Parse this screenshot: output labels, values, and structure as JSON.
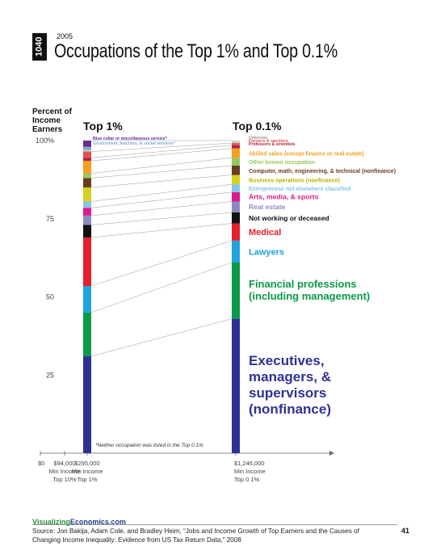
{
  "header": {
    "logo_text": "1040",
    "year": "2005",
    "title": "Occupations of the Top 1% and Top 0.1%"
  },
  "y_axis_label": "Percent of Income Earners",
  "note": "*Neither occupation was listed in the Top 0.1%",
  "footer": {
    "brand_part1": "Visualizing",
    "brand_part2": "Economics.com",
    "source": "Source: Jon Bakija, Adam Cole, and Bradley Heim, “Jobs and Income Growth of Top Earners and the Causes of Changing Income Inequality: Evidence from US Tax Return Data,” 2008",
    "page_number": "41"
  },
  "chart_data": {
    "type": "bar",
    "subtype": "stacked-100-percent",
    "ylim": [
      0,
      100
    ],
    "yticks": [
      "100%",
      "75",
      "50",
      "25"
    ],
    "ytick_values": [
      100,
      75,
      50,
      25
    ],
    "x_axis": {
      "ticks": [
        {
          "value": 0,
          "lines": [
            "$0"
          ]
        },
        {
          "value": 94000,
          "lines": [
            "$94,000",
            "Min Income",
            "Top 10%"
          ]
        },
        {
          "value": 295000,
          "lines": [
            "$295,000",
            "Min Income",
            "Top 1%"
          ]
        },
        {
          "value": 1246000,
          "lines": [
            "$1,246,000",
            "Min Income",
            "Top 0.1%"
          ]
        }
      ]
    },
    "columns": [
      {
        "name": "Top 1%",
        "min_income": 295000
      },
      {
        "name": "Top 0.1%",
        "min_income": 1246000
      }
    ],
    "series": [
      {
        "name": "Executives, managers, & supervisors (nonfinance)",
        "color": "#2e3192",
        "values": [
          31.0,
          43.0
        ]
      },
      {
        "name": "Financial professions (including management)",
        "color": "#0a9a48",
        "values": [
          14.0,
          18.0
        ]
      },
      {
        "name": "Lawyers",
        "color": "#1ea3dc",
        "values": [
          8.5,
          7.0
        ]
      },
      {
        "name": "Medical",
        "color": "#e4202a",
        "values": [
          15.5,
          5.5
        ]
      },
      {
        "name": "Not working or deceased",
        "color": "#111111",
        "values": [
          4.0,
          3.5
        ]
      },
      {
        "name": "Real estate",
        "color": "#8b8bc4",
        "values": [
          3.0,
          3.5
        ]
      },
      {
        "name": "Arts, media, & sports",
        "color": "#dd1a8c",
        "values": [
          2.5,
          3.0
        ]
      },
      {
        "name": "Entrepreneur not elsewhere classified",
        "color": "#86c4e8",
        "values": [
          2.0,
          2.5
        ]
      },
      {
        "name": "Business operations (nonfinance)",
        "color": "#d4d21f",
        "values": [
          4.5,
          3.0
        ]
      },
      {
        "name": "Computer, math, engineering, & technical (nonfinance)",
        "color": "#6a3b22",
        "values": [
          3.0,
          3.0
        ]
      },
      {
        "name": "Other known occupation",
        "color": "#98c960",
        "values": [
          1.5,
          2.5
        ]
      },
      {
        "name": "Skilled sales (except finance or real estate)",
        "color": "#f5a01f",
        "values": [
          4.0,
          3.0
        ]
      },
      {
        "name": "Professors & scientists",
        "color": "#b31f46",
        "values": [
          1.0,
          1.0
        ]
      },
      {
        "name": "Farmers & ranchers",
        "color": "#e3534e",
        "values": [
          2.0,
          0.7
        ]
      },
      {
        "name": "Unknown",
        "color": "#cccccc",
        "values": [
          0.5,
          0.8
        ]
      },
      {
        "name": "Government, teachers, & social services*",
        "color": "#7da7d9",
        "values": [
          1.0,
          0
        ]
      },
      {
        "name": "Blue collar or miscellaneous service*",
        "color": "#6d2c8f",
        "values": [
          2.0,
          0
        ]
      }
    ],
    "legend_labels": [
      {
        "text": "Blue collar or miscellaneous service*",
        "series": 16,
        "column": 0
      },
      {
        "text": "Government, teachers, & social services*",
        "series": 15,
        "column": 0
      },
      {
        "text": "Unknown",
        "series": 14,
        "column": 1
      },
      {
        "text": "Farmers & ranchers",
        "series": 13,
        "column": 1
      },
      {
        "text": "Professors & scientists",
        "series": 12,
        "column": 1
      },
      {
        "text": "Skilled sales (except finance or real estate)",
        "series": 11,
        "column": 1
      },
      {
        "text": "Other known occupation",
        "series": 10,
        "column": 1
      },
      {
        "text": "Computer, math, engineering, & technical (nonfinance)",
        "series": 9,
        "column": 1
      },
      {
        "text": "Business operations (nonfinance)",
        "series": 8,
        "column": 1
      },
      {
        "text": "Entrepreneur not elsewhere classified",
        "series": 7,
        "column": 1
      },
      {
        "text": "Arts, media, & sports",
        "series": 6,
        "column": 1
      },
      {
        "text": "Real estate",
        "series": 5,
        "column": 1
      },
      {
        "text": "Not working or deceased",
        "series": 4,
        "column": 1
      },
      {
        "text": "Medical",
        "series": 3,
        "column": 1
      },
      {
        "text": "Lawyers",
        "series": 2,
        "column": 1
      },
      {
        "text": "Financial professions (including management)",
        "series": 1,
        "column": 1
      },
      {
        "text": "Executives, managers, & supervisors (nonfinance)",
        "series": 0,
        "column": 1
      }
    ]
  }
}
